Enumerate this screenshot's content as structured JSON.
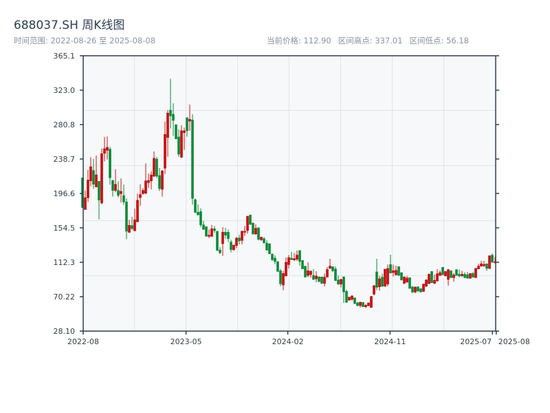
{
  "header": {
    "title": "688037.SH 周K线图",
    "range_text": "时间范围: 2022-08-26 至 2025-08-08",
    "stats": [
      {
        "label": "当前价格: 112.90"
      },
      {
        "label": "区间高点: 337.01"
      },
      {
        "label": "区间低点: 56.18"
      }
    ]
  },
  "chart_data": {
    "type": "candlestick",
    "title": "688037.SH 周K线图",
    "start_date": "2022-08-26",
    "end_date": "2025-08-08",
    "ylim": [
      28.1,
      365.1
    ],
    "y_ticks": [
      "28.10",
      "70.22",
      "112.3",
      "154.5",
      "196.6",
      "238.7",
      "280.8",
      "323.0",
      "365.1"
    ],
    "x_ticks": [
      {
        "label": "2022-08",
        "index": 0
      },
      {
        "label": "2023-05",
        "index": 37.4
      },
      {
        "label": "2024-02",
        "index": 74.4
      },
      {
        "label": "2024-11",
        "index": 111.6
      },
      {
        "label": "2025-07",
        "index": 148.8
      },
      {
        "label": "2025-08",
        "index": 150.2
      }
    ],
    "grid": true,
    "colors": {
      "up": "#d40f0f",
      "up_edge": "#a00000",
      "down": "#0a8a38",
      "axis": "#2c3e50",
      "grid": "#e1e5ea",
      "plot_bg": "#f6f8fa"
    },
    "ohlc_order": [
      "open",
      "high",
      "low",
      "close"
    ],
    "candles": [
      [
        215.7,
        215.7,
        179.2,
        179.2
      ],
      [
        176.9,
        200.2,
        176.9,
        191.3
      ],
      [
        191.3,
        225.5,
        186.2,
        212.9
      ],
      [
        212.0,
        241.0,
        205.3,
        229.2
      ],
      [
        224.7,
        238.7,
        202.2,
        207.8
      ],
      [
        204.5,
        242.9,
        204.5,
        219.3
      ],
      [
        211.5,
        211.5,
        164.9,
        188.4
      ],
      [
        184.8,
        251.4,
        183.4,
        245.2
      ],
      [
        245.7,
        265.7,
        235.9,
        251.4
      ],
      [
        249.4,
        266.2,
        238.2,
        253.0
      ],
      [
        250.8,
        253.6,
        207.3,
        215.7
      ],
      [
        212.6,
        212.6,
        192.7,
        200.3
      ],
      [
        200.3,
        226.1,
        198.0,
        207.8
      ],
      [
        200.3,
        211.5,
        191.8,
        194.1
      ],
      [
        196.3,
        214.9,
        185.4,
        199.1
      ],
      [
        194.1,
        207.3,
        182.6,
        186.2
      ],
      [
        186.2,
        190.4,
        140.7,
        150.3
      ],
      [
        148.9,
        164.3,
        148.9,
        157.6
      ],
      [
        157.3,
        168.0,
        151.7,
        153.6
      ],
      [
        150.8,
        177.8,
        150.8,
        164.3
      ],
      [
        161.8,
        196.3,
        161.8,
        188.2
      ],
      [
        191.5,
        207.8,
        181.2,
        195.2
      ],
      [
        196.3,
        203.1,
        195.2,
        200.3
      ],
      [
        196.9,
        233.4,
        195.5,
        212.0
      ],
      [
        209.8,
        220.8,
        203.6,
        212.3
      ],
      [
        212.0,
        223.8,
        201.4,
        219.3
      ],
      [
        217.7,
        248.0,
        216.5,
        239.6
      ],
      [
        238.7,
        241.3,
        215.4,
        217.7
      ],
      [
        218.5,
        227.8,
        199.7,
        202.5
      ],
      [
        201.6,
        225.5,
        192.7,
        224.1
      ],
      [
        227.5,
        284.5,
        220.5,
        268.8
      ],
      [
        265.1,
        298.5,
        241.5,
        294.9
      ],
      [
        298.5,
        337.0,
        276.1,
        291.5
      ],
      [
        293.5,
        307.0,
        266.8,
        285.9
      ],
      [
        280.8,
        280.8,
        262.9,
        263.4
      ],
      [
        265.7,
        274.9,
        241.5,
        244.6
      ],
      [
        240.9,
        280.0,
        240.1,
        273.3
      ],
      [
        271.0,
        277.2,
        249.9,
        273.3
      ],
      [
        289.3,
        289.3,
        266.0,
        273.3
      ],
      [
        285.1,
        305.3,
        273.3,
        287.3
      ],
      [
        286.5,
        293.5,
        182.8,
        190.4
      ],
      [
        189.0,
        190.4,
        173.3,
        173.3
      ],
      [
        173.6,
        183.1,
        170.2,
        170.2
      ],
      [
        174.4,
        178.3,
        155.3,
        158.1
      ],
      [
        158.1,
        162.9,
        152.5,
        152.5
      ],
      [
        155.9,
        155.9,
        144.1,
        144.1
      ],
      [
        144.1,
        152.5,
        141.8,
        145.5
      ],
      [
        144.1,
        158.1,
        143.2,
        153.3
      ],
      [
        153.3,
        156.7,
        148.3,
        151.1
      ],
      [
        150.3,
        150.3,
        126.7,
        126.7
      ],
      [
        127.2,
        130.9,
        122.2,
        123.9
      ],
      [
        135.1,
        155.3,
        120.2,
        149.1
      ],
      [
        149.1,
        154.5,
        141.3,
        145.5
      ],
      [
        149.1,
        152.5,
        137.1,
        141.3
      ],
      [
        137.1,
        139.9,
        124.4,
        127.8
      ],
      [
        127.8,
        133.4,
        126.4,
        133.4
      ],
      [
        132.8,
        143.5,
        129.5,
        141.8
      ],
      [
        142.1,
        146.0,
        134.2,
        138.5
      ],
      [
        139.0,
        151.1,
        134.2,
        150.3
      ],
      [
        149.1,
        156.7,
        144.6,
        150.3
      ],
      [
        151.1,
        169.3,
        147.4,
        168.5
      ],
      [
        170.2,
        170.2,
        158.1,
        158.7
      ],
      [
        160.4,
        160.4,
        146.3,
        146.9
      ],
      [
        146.9,
        158.7,
        146.0,
        153.9
      ],
      [
        154.7,
        154.7,
        139.0,
        140.4
      ],
      [
        139.9,
        143.2,
        138.5,
        143.2
      ],
      [
        141.3,
        143.2,
        135.1,
        136.2
      ],
      [
        135.7,
        139.3,
        126.7,
        127.2
      ],
      [
        135.1,
        135.1,
        122.2,
        122.7
      ],
      [
        122.5,
        122.5,
        113.8,
        115.4
      ],
      [
        117.4,
        120.8,
        109.8,
        113.2
      ],
      [
        113.2,
        113.2,
        101.1,
        101.1
      ],
      [
        101.9,
        104.2,
        83.1,
        85.9
      ],
      [
        84.5,
        101.9,
        78.1,
        98.6
      ],
      [
        95.5,
        118.2,
        95.5,
        112.3
      ],
      [
        109.5,
        121.1,
        104.8,
        118.0
      ],
      [
        117.4,
        125.0,
        115.4,
        115.4
      ],
      [
        115.2,
        123.6,
        113.8,
        116.8
      ],
      [
        116.0,
        126.7,
        113.8,
        121.1
      ],
      [
        126.7,
        126.7,
        108.1,
        113.2
      ],
      [
        114.6,
        114.6,
        104.2,
        104.2
      ],
      [
        107.6,
        107.6,
        94.1,
        94.1
      ],
      [
        96.3,
        112.3,
        94.1,
        101.9
      ],
      [
        97.2,
        102.5,
        93.5,
        101.4
      ],
      [
        96.3,
        103.9,
        90.7,
        91.3
      ],
      [
        92.1,
        101.4,
        87.9,
        95.5
      ],
      [
        94.4,
        95.2,
        87.9,
        88.8
      ],
      [
        94.4,
        94.4,
        85.7,
        86.5
      ],
      [
        86.5,
        98.6,
        82.9,
        94.1
      ],
      [
        94.1,
        106.7,
        94.1,
        103.4
      ],
      [
        104.8,
        116.6,
        104.2,
        107.6
      ],
      [
        107.0,
        107.0,
        100.6,
        101.9
      ],
      [
        104.2,
        107.0,
        89.9,
        89.9
      ],
      [
        90.7,
        96.3,
        84.5,
        85.7
      ],
      [
        85.7,
        92.1,
        81.7,
        91.3
      ],
      [
        94.6,
        94.6,
        62.6,
        76.1
      ],
      [
        76.7,
        78.6,
        63.2,
        63.2
      ],
      [
        66.0,
        69.7,
        65.4,
        69.7
      ],
      [
        66.9,
        71.9,
        65.4,
        71.1
      ],
      [
        68.8,
        68.8,
        61.2,
        61.8
      ],
      [
        62.6,
        64.0,
        58.4,
        59.3
      ],
      [
        59.3,
        64.0,
        57.0,
        63.5
      ],
      [
        63.2,
        63.2,
        57.9,
        57.9
      ],
      [
        57.9,
        60.7,
        56.2,
        59.8
      ],
      [
        59.3,
        62.6,
        58.4,
        62.6
      ],
      [
        57.0,
        71.1,
        57.0,
        70.5
      ],
      [
        73.3,
        84.3,
        71.9,
        83.7
      ],
      [
        100.6,
        116.6,
        78.1,
        81.7
      ],
      [
        82.3,
        95.8,
        77.5,
        92.1
      ],
      [
        94.1,
        98.3,
        82.3,
        82.9
      ],
      [
        82.9,
        103.9,
        82.9,
        103.9
      ],
      [
        85.7,
        109.5,
        82.9,
        104.8
      ],
      [
        109.5,
        121.6,
        99.1,
        99.1
      ],
      [
        99.7,
        109.5,
        94.9,
        102.0
      ],
      [
        96.9,
        108.1,
        96.3,
        102.5
      ],
      [
        107.0,
        107.0,
        95.8,
        96.3
      ],
      [
        99.7,
        99.7,
        89.9,
        90.7
      ],
      [
        86.5,
        94.9,
        85.7,
        94.4
      ],
      [
        87.9,
        95.8,
        87.9,
        93.0
      ],
      [
        93.5,
        93.5,
        80.3,
        80.3
      ],
      [
        82.3,
        83.1,
        74.7,
        75.8
      ],
      [
        75.8,
        83.1,
        74.7,
        81.7
      ],
      [
        82.3,
        83.1,
        75.8,
        77.2
      ],
      [
        80.0,
        80.0,
        75.8,
        75.8
      ],
      [
        76.7,
        85.7,
        76.1,
        85.7
      ],
      [
        82.9,
        91.3,
        82.3,
        90.7
      ],
      [
        86.2,
        98.6,
        85.7,
        97.7
      ],
      [
        101.1,
        101.1,
        86.5,
        87.4
      ],
      [
        86.5,
        97.2,
        85.7,
        90.2
      ],
      [
        89.3,
        103.9,
        89.3,
        98.3
      ],
      [
        96.3,
        102.5,
        95.5,
        99.7
      ],
      [
        106.2,
        106.2,
        96.9,
        96.9
      ],
      [
        95.8,
        101.1,
        94.9,
        101.1
      ],
      [
        91.3,
        103.9,
        83.7,
        103.4
      ],
      [
        101.9,
        101.9,
        93.0,
        93.5
      ],
      [
        93.5,
        99.1,
        88.5,
        96.9
      ],
      [
        103.4,
        103.4,
        95.8,
        96.3
      ],
      [
        97.7,
        103.4,
        94.1,
        95.5
      ],
      [
        95.8,
        101.9,
        94.1,
        97.7
      ],
      [
        97.7,
        100.0,
        93.0,
        93.5
      ],
      [
        97.2,
        100.6,
        92.7,
        92.7
      ],
      [
        92.7,
        99.1,
        92.7,
        98.6
      ],
      [
        98.6,
        100.6,
        93.5,
        94.1
      ],
      [
        93.5,
        105.3,
        93.5,
        104.8
      ],
      [
        104.2,
        110.4,
        103.9,
        107.6
      ],
      [
        107.6,
        114.0,
        107.0,
        110.4
      ],
      [
        108.1,
        114.0,
        106.2,
        109.8
      ],
      [
        110.4,
        110.9,
        101.9,
        104.8
      ],
      [
        104.8,
        121.1,
        103.9,
        120.2
      ],
      [
        121.1,
        123.0,
        111.8,
        112.3
      ],
      [
        112.1,
        118.8,
        110.9,
        112.9
      ]
    ]
  }
}
